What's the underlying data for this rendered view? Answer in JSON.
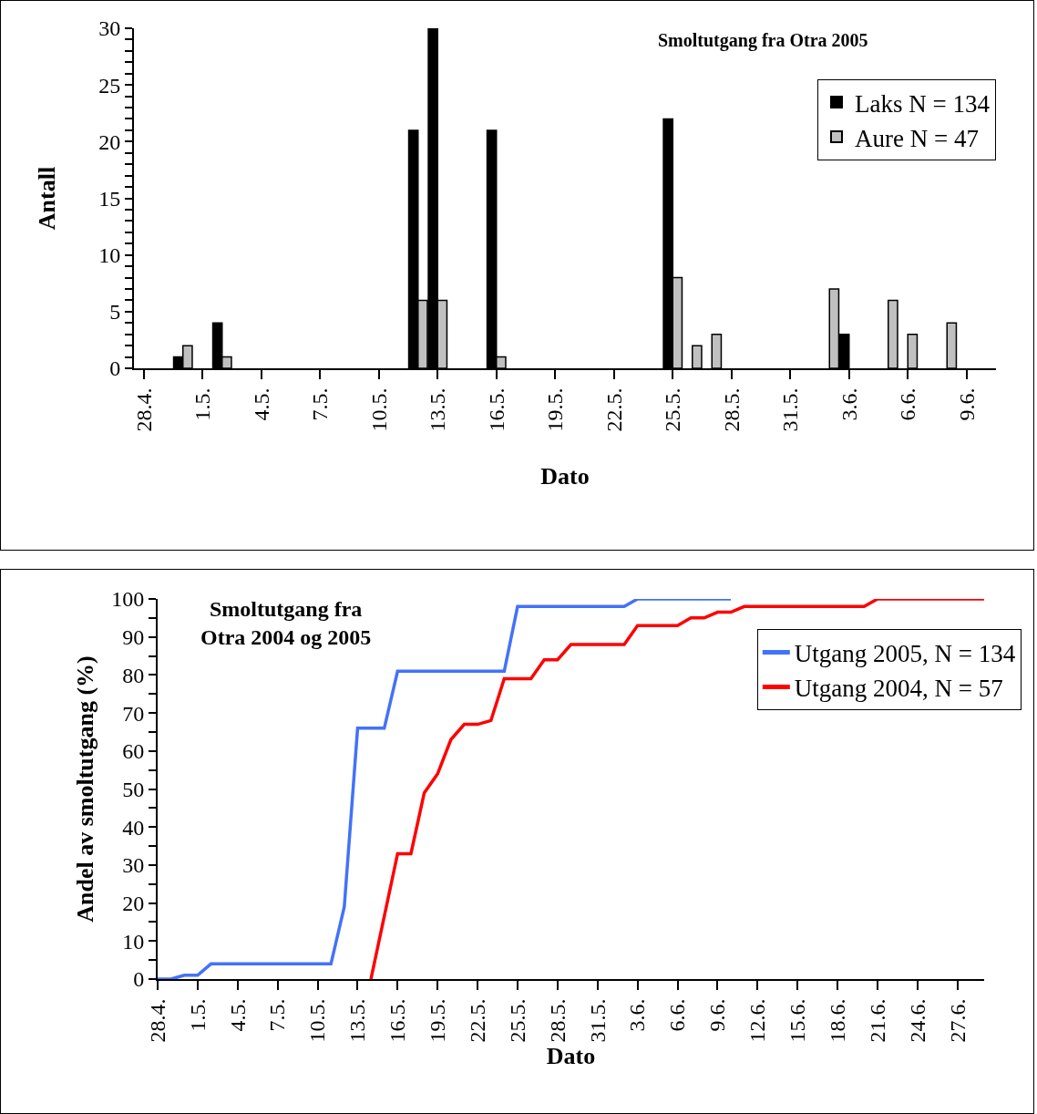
{
  "chart_data": [
    {
      "type": "bar",
      "title": "Smoltutgang fra Otra 2005",
      "xlabel": "Dato",
      "ylabel": "Antall",
      "categories": [
        "28.4.",
        null,
        null,
        "1.5.",
        null,
        null,
        "4.5.",
        null,
        null,
        "7.5.",
        null,
        null,
        "10.5.",
        null,
        null,
        "13.5.",
        null,
        null,
        "16.5.",
        null,
        null,
        "19.5.",
        null,
        null,
        "22.5.",
        null,
        null,
        "25.5.",
        null,
        null,
        "28.5.",
        null,
        null,
        "31.5.",
        null,
        null,
        "3.6.",
        null,
        null,
        "6.6.",
        null,
        null,
        "9.6.",
        null
      ],
      "series": [
        {
          "name": "Laks N = 134",
          "color": "#000000",
          "values": [
            0,
            0,
            1,
            0,
            4,
            0,
            0,
            0,
            0,
            0,
            0,
            0,
            0,
            0,
            21,
            30,
            0,
            0,
            21,
            0,
            0,
            0,
            0,
            0,
            0,
            0,
            0,
            22,
            0,
            0,
            0,
            0,
            0,
            0,
            0,
            0,
            3,
            0,
            0,
            0,
            0,
            0,
            0,
            0
          ]
        },
        {
          "name": "Aure N = 47",
          "color": "#c0c0c0",
          "values": [
            0,
            0,
            2,
            0,
            1,
            0,
            0,
            0,
            0,
            0,
            0,
            0,
            0,
            0,
            6,
            6,
            0,
            0,
            1,
            0,
            0,
            0,
            0,
            0,
            0,
            0,
            0,
            8,
            2,
            3,
            0,
            0,
            0,
            0,
            0,
            7,
            0,
            0,
            6,
            3,
            0,
            4,
            0,
            0
          ]
        }
      ],
      "ylim": [
        0,
        30
      ],
      "yticks": [
        0,
        {
          "value": 1,
          "label": null
        },
        {
          "value": 2,
          "label": null
        },
        {
          "value": 3,
          "label": null
        },
        {
          "value": 4,
          "label": null
        },
        5,
        {
          "value": 6,
          "label": null
        },
        {
          "value": 7,
          "label": null
        },
        {
          "value": 8,
          "label": null
        },
        {
          "value": 9,
          "label": null
        },
        10,
        {
          "value": 11,
          "label": null
        },
        {
          "value": 12,
          "label": null
        },
        {
          "value": 13,
          "label": null
        },
        {
          "value": 14,
          "label": null
        },
        15,
        {
          "value": 16,
          "label": null
        },
        {
          "value": 17,
          "label": null
        },
        {
          "value": 18,
          "label": null
        },
        {
          "value": 19,
          "label": null
        },
        20,
        {
          "value": 21,
          "label": null
        },
        {
          "value": 22,
          "label": null
        },
        {
          "value": 23,
          "label": null
        },
        {
          "value": 24,
          "label": null
        },
        25,
        {
          "value": 26,
          "label": null
        },
        {
          "value": 27,
          "label": null
        },
        {
          "value": 28,
          "label": null
        },
        {
          "value": 29,
          "label": null
        },
        30
      ],
      "legend": "top right"
    },
    {
      "type": "line",
      "title": "Smoltutgang fra\nOtra 2004 og 2005",
      "xlabel": "Dato",
      "ylabel": "Andel av smoltutgang (%)",
      "series": [
        {
          "name": "Utgang 2005, N = 134",
          "color": "#4372f9",
          "x": [
            "--04-28",
            "--04-29",
            "--04-30",
            "--05-01",
            "--05-02",
            "--05-11",
            "--05-12",
            "--05-13",
            "--05-15",
            "--05-16",
            "--05-24",
            "--05-25",
            "--06-02",
            "--06-03",
            "--06-10"
          ],
          "values": [
            0,
            0,
            1,
            1,
            4,
            4,
            19,
            66,
            66,
            81,
            81,
            98,
            98,
            100,
            100
          ]
        },
        {
          "name": "Utgang 2004, N = 57",
          "color": "#ff0000",
          "x": [
            "--05-14",
            "--05-16",
            "--05-17",
            "--05-18",
            "--05-19",
            "--05-20",
            "--05-21",
            "--05-22",
            "--05-23",
            "--05-24",
            "--05-26",
            "--05-27",
            "--05-28",
            "--05-29",
            "--06-02",
            "--06-03",
            "--06-06",
            "--06-07",
            "--06-08",
            "--06-09",
            "--06-10",
            "--06-11",
            "--06-20",
            "--06-21",
            "--06-29"
          ],
          "values": [
            0,
            33,
            33,
            49,
            54,
            63,
            67,
            67,
            68,
            79,
            79,
            84,
            84,
            88,
            88,
            93,
            93,
            95,
            95,
            96.5,
            96.5,
            98,
            98,
            100,
            100
          ]
        }
      ],
      "xlim": [
        "--04-28",
        "--06-29"
      ],
      "xticks": [
        {
          "value": "--04-28",
          "label": "28.4."
        },
        {
          "value": "--05-01",
          "label": "1.5."
        },
        {
          "value": "--05-04",
          "label": "4.5."
        },
        {
          "value": "--05-07",
          "label": "7.5."
        },
        {
          "value": "--05-10",
          "label": "10.5."
        },
        {
          "value": "--05-13",
          "label": "13.5."
        },
        {
          "value": "--05-16",
          "label": "16.5."
        },
        {
          "value": "--05-19",
          "label": "19.5."
        },
        {
          "value": "--05-22",
          "label": "22.5."
        },
        {
          "value": "--05-25",
          "label": "25.5."
        },
        {
          "value": "--05-28",
          "label": "28.5."
        },
        {
          "value": "--05-31",
          "label": "31.5."
        },
        {
          "value": "--06-03",
          "label": "3.6."
        },
        {
          "value": "--06-06",
          "label": "6.6."
        },
        {
          "value": "--06-09",
          "label": "9.6."
        },
        {
          "value": "--06-12",
          "label": "12.6."
        },
        {
          "value": "--06-15",
          "label": "15.6."
        },
        {
          "value": "--06-18",
          "label": "18.6."
        },
        {
          "value": "--06-21",
          "label": "21.6."
        },
        {
          "value": "--06-24",
          "label": "24.6."
        },
        {
          "value": "--06-27",
          "label": "27.6."
        }
      ],
      "ylim": [
        0,
        100
      ],
      "yticks": [
        0,
        {
          "value": 5,
          "label": null
        },
        10,
        {
          "value": 15,
          "label": null
        },
        20,
        {
          "value": 25,
          "label": null
        },
        30,
        {
          "value": 35,
          "label": null
        },
        40,
        {
          "value": 45,
          "label": null
        },
        50,
        {
          "value": 55,
          "label": null
        },
        60,
        {
          "value": 65,
          "label": null
        },
        70,
        {
          "value": 75,
          "label": null
        },
        80,
        {
          "value": 85,
          "label": null
        },
        90,
        {
          "value": 95,
          "label": null
        },
        100
      ],
      "legend": "top right"
    }
  ]
}
